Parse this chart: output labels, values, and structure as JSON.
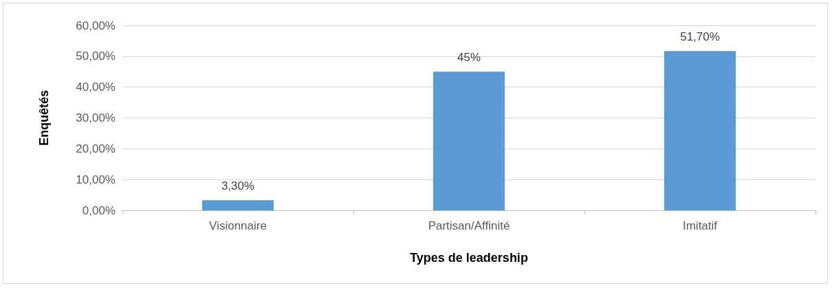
{
  "chart_data": {
    "type": "bar",
    "xlabel": "Types de leadership",
    "ylabel": "Enquêtés",
    "categories": [
      "Visionnaire",
      "Partisan/Affinité",
      "Imitatif"
    ],
    "values": [
      3.3,
      45,
      51.7
    ],
    "color": "#5b9bd5",
    "value_labels": [
      "3,30%",
      "45%",
      "51,70%"
    ],
    "ylim": [
      0,
      60
    ],
    "yticks": [
      {
        "value": 0,
        "label": "0,00%"
      },
      {
        "value": 10,
        "label": "10,00%"
      },
      {
        "value": 20,
        "label": "20,00%"
      },
      {
        "value": 30,
        "label": "30,00%"
      },
      {
        "value": 40,
        "label": "40,00%"
      },
      {
        "value": 50,
        "label": "50,00%"
      },
      {
        "value": 60,
        "label": "60,00%"
      }
    ],
    "grid": "y"
  }
}
